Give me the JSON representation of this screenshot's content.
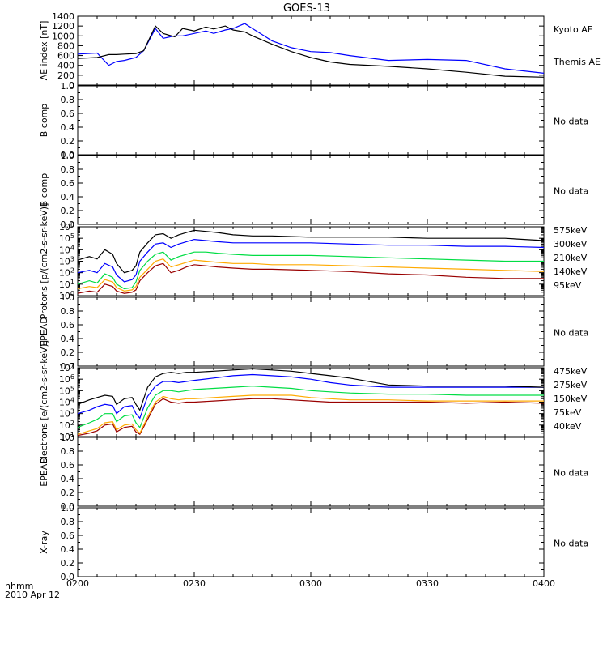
{
  "title": "GOES-13",
  "footer": {
    "unit": "hhmm",
    "date": "2010 Apr 12"
  },
  "x_ticks": [
    "0200",
    "0230",
    "0300",
    "0330",
    "0400"
  ],
  "colors": {
    "black": "#000000",
    "blue": "#0000ff",
    "green": "#00dd44",
    "orange": "#ffaa00",
    "darkred": "#990000"
  },
  "chart_data": [
    {
      "type": "line",
      "ylabel": "AE index [nT]",
      "ylim": [
        0,
        1400
      ],
      "y_ticks": [
        "0",
        "200",
        "400",
        "600",
        "800",
        "1000",
        "1200",
        "1400"
      ],
      "x": [
        "0200",
        "0205",
        "0208",
        "0210",
        "0212",
        "0215",
        "0217",
        "0220",
        "0222",
        "0225",
        "0227",
        "0230",
        "0233",
        "0235",
        "0238",
        "0240",
        "0243",
        "0245",
        "0248",
        "0250",
        "0255",
        "0300",
        "0305",
        "0310",
        "0320",
        "0330",
        "0340",
        "0350",
        "0400"
      ],
      "series": [
        {
          "name": "Kyoto AE",
          "color": "#0000ff",
          "values": [
            630,
            650,
            400,
            480,
            500,
            560,
            700,
            1150,
            950,
            1000,
            1000,
            1050,
            1100,
            1050,
            1120,
            1150,
            1250,
            1150,
            1000,
            900,
            760,
            680,
            660,
            600,
            500,
            520,
            500,
            330,
            240
          ]
        },
        {
          "name": "Themis AE",
          "color": "#000000",
          "values": [
            540,
            560,
            620,
            620,
            630,
            640,
            700,
            1200,
            1050,
            980,
            1150,
            1100,
            1180,
            1140,
            1200,
            1120,
            1080,
            1000,
            900,
            830,
            680,
            560,
            470,
            420,
            380,
            330,
            260,
            180,
            160
          ]
        }
      ]
    },
    {
      "type": "line",
      "ylabel": "B comp",
      "ylim": [
        0,
        1
      ],
      "y_ticks": [
        "0.0",
        "0.2",
        "0.4",
        "0.6",
        "0.8",
        "1.0"
      ],
      "note": "No data"
    },
    {
      "type": "line",
      "ylabel": "B comp",
      "ylim": [
        0,
        1
      ],
      "y_ticks": [
        "0.0",
        "0.2",
        "0.4",
        "0.6",
        "0.8",
        "1.0"
      ],
      "note": "No data"
    },
    {
      "type": "line",
      "ylabel": "Protons [p/(cm2-s-sr-keV)]",
      "scale": "log",
      "ylim_exp": [
        0,
        6
      ],
      "x": [
        "0200",
        "0203",
        "0205",
        "0207",
        "0209",
        "0210",
        "0212",
        "0214",
        "0215",
        "0216",
        "0218",
        "0220",
        "0222",
        "0224",
        "0226",
        "0228",
        "0230",
        "0233",
        "0236",
        "0240",
        "0245",
        "0250",
        "0300",
        "0310",
        "0320",
        "0330",
        "0340",
        "0350",
        "0400"
      ],
      "series": [
        {
          "name": "575keV",
          "color": "#990000",
          "exp": [
            0.2,
            0.4,
            0.3,
            1.0,
            0.8,
            0.4,
            0.2,
            0.3,
            0.5,
            1.3,
            2.0,
            2.6,
            2.8,
            2.0,
            2.2,
            2.5,
            2.7,
            2.6,
            2.5,
            2.4,
            2.3,
            2.3,
            2.2,
            2.1,
            1.9,
            1.8,
            1.6,
            1.5,
            1.5
          ]
        },
        {
          "name": "300keV",
          "color": "#ffaa00",
          "exp": [
            0.6,
            0.8,
            0.7,
            1.4,
            1.2,
            0.7,
            0.4,
            0.5,
            0.8,
            1.6,
            2.3,
            3.0,
            3.2,
            2.5,
            2.7,
            2.9,
            3.1,
            3.0,
            2.9,
            2.8,
            2.8,
            2.7,
            2.7,
            2.6,
            2.5,
            2.4,
            2.3,
            2.2,
            2.1
          ]
        },
        {
          "name": "210keV",
          "color": "#00dd44",
          "exp": [
            1.0,
            1.3,
            1.1,
            1.9,
            1.6,
            1.0,
            0.6,
            0.7,
            1.2,
            2.2,
            3.0,
            3.6,
            3.8,
            3.1,
            3.4,
            3.6,
            3.8,
            3.8,
            3.7,
            3.6,
            3.5,
            3.5,
            3.5,
            3.4,
            3.3,
            3.2,
            3.1,
            3.0,
            3.0
          ]
        },
        {
          "name": "140keV",
          "color": "#0000ff",
          "exp": [
            2.0,
            2.2,
            2.0,
            2.8,
            2.5,
            1.8,
            1.2,
            1.4,
            1.8,
            3.0,
            3.8,
            4.5,
            4.6,
            4.2,
            4.5,
            4.7,
            4.9,
            4.8,
            4.7,
            4.6,
            4.6,
            4.6,
            4.6,
            4.5,
            4.4,
            4.4,
            4.3,
            4.3,
            4.2
          ]
        },
        {
          "name": "95keV",
          "color": "#000000",
          "exp": [
            3.1,
            3.4,
            3.2,
            4.0,
            3.6,
            2.8,
            2.0,
            2.2,
            2.6,
            3.8,
            4.6,
            5.3,
            5.4,
            5.0,
            5.3,
            5.5,
            5.7,
            5.6,
            5.5,
            5.3,
            5.2,
            5.2,
            5.1,
            5.1,
            5.1,
            5.0,
            5.0,
            5.0,
            4.8
          ]
        }
      ],
      "note_labels": [
        "575keV",
        "300keV",
        "210keV",
        "140keV",
        "95keV"
      ]
    },
    {
      "type": "line",
      "ylabel": "EPEAD",
      "ylim": [
        0,
        1
      ],
      "y_ticks": [
        "0.0",
        "0.2",
        "0.4",
        "0.6",
        "0.8",
        "1.0"
      ],
      "note": "No data"
    },
    {
      "type": "line",
      "ylabel": "Electrons [e/(cm2-s-sr-keV)]",
      "scale": "log",
      "ylim_exp": [
        1,
        7
      ],
      "x": [
        "0200",
        "0203",
        "0205",
        "0207",
        "0209",
        "0210",
        "0212",
        "0214",
        "0215",
        "0216",
        "0218",
        "0220",
        "0222",
        "0224",
        "0226",
        "0228",
        "0230",
        "0235",
        "0240",
        "0245",
        "0250",
        "0255",
        "0300",
        "0305",
        "0310",
        "0320",
        "0330",
        "0340",
        "0350",
        "0400"
      ],
      "series": [
        {
          "name": "475keV",
          "color": "#990000",
          "exp": [
            1.1,
            1.3,
            1.5,
            2.0,
            2.1,
            1.4,
            1.8,
            1.9,
            1.4,
            1.2,
            2.5,
            3.8,
            4.3,
            4.0,
            3.9,
            4.0,
            4.0,
            4.1,
            4.2,
            4.3,
            4.3,
            4.2,
            4.1,
            4.0,
            4.0,
            4.0,
            4.0,
            3.9,
            4.0,
            3.9
          ]
        },
        {
          "name": "275keV",
          "color": "#ffaa00",
          "exp": [
            1.2,
            1.5,
            1.7,
            2.2,
            2.3,
            1.6,
            2.0,
            2.1,
            1.6,
            1.3,
            2.7,
            4.0,
            4.5,
            4.3,
            4.2,
            4.3,
            4.3,
            4.4,
            4.5,
            4.6,
            4.6,
            4.6,
            4.4,
            4.3,
            4.2,
            4.2,
            4.1,
            4.1,
            4.1,
            4.1
          ]
        },
        {
          "name": "150keV",
          "color": "#00dd44",
          "exp": [
            1.8,
            2.2,
            2.5,
            3.0,
            3.0,
            2.3,
            2.8,
            2.9,
            2.2,
            1.8,
            3.5,
            4.6,
            5.0,
            5.0,
            4.9,
            5.0,
            5.1,
            5.2,
            5.3,
            5.4,
            5.3,
            5.2,
            5.0,
            4.9,
            4.8,
            4.7,
            4.7,
            4.6,
            4.6,
            4.6
          ]
        },
        {
          "name": "75keV",
          "color": "#0000ff",
          "exp": [
            3.0,
            3.3,
            3.6,
            3.8,
            3.7,
            3.0,
            3.6,
            3.7,
            3.0,
            2.6,
            4.5,
            5.4,
            5.8,
            5.8,
            5.7,
            5.8,
            5.9,
            6.1,
            6.3,
            6.4,
            6.3,
            6.2,
            6.0,
            5.7,
            5.5,
            5.3,
            5.3,
            5.3,
            5.3,
            5.3
          ]
        },
        {
          "name": "40keV",
          "color": "#000000",
          "exp": [
            3.8,
            4.2,
            4.4,
            4.6,
            4.5,
            3.8,
            4.3,
            4.4,
            3.8,
            3.3,
            5.3,
            6.2,
            6.5,
            6.6,
            6.5,
            6.6,
            6.6,
            6.7,
            6.8,
            6.9,
            6.8,
            6.7,
            6.5,
            6.3,
            6.1,
            5.5,
            5.4,
            5.4,
            5.4,
            5.3
          ]
        }
      ]
    },
    {
      "type": "line",
      "ylabel": "EPEAD",
      "ylim": [
        0,
        1
      ],
      "y_ticks": [
        "0.0",
        "0.2",
        "0.4",
        "0.6",
        "0.8",
        "1.0"
      ],
      "note": "No data"
    },
    {
      "type": "line",
      "ylabel": "X-ray",
      "ylim": [
        0,
        1
      ],
      "y_ticks": [
        "0.0",
        "0.2",
        "0.4",
        "0.6",
        "0.8",
        "1.0"
      ],
      "note": "No data"
    }
  ]
}
